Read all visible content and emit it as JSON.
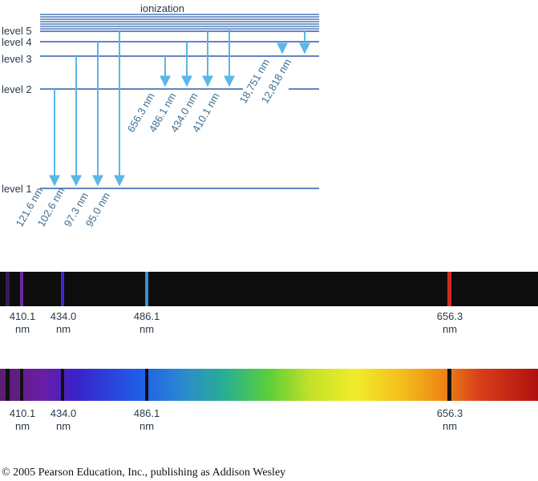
{
  "diagram": {
    "ionization_label": "ionization",
    "levels": [
      "level 1",
      "level 2",
      "level 3",
      "level 4",
      "level 5"
    ],
    "lyman_series": [
      "121.6 nm",
      "102.6 nm",
      "97.3 nm",
      "95.0 nm"
    ],
    "balmer_series": [
      "656.3 nm",
      "486.1 nm",
      "434.0 nm",
      "410.1 nm"
    ],
    "paschen_series": [
      "18,751 nm",
      "12,818 nm"
    ]
  },
  "spectra": {
    "lines": [
      {
        "value": "410.1",
        "unit": "nm"
      },
      {
        "value": "434.0",
        "unit": "nm"
      },
      {
        "value": "486.1",
        "unit": "nm"
      },
      {
        "value": "656.3",
        "unit": "nm"
      }
    ],
    "emission_colors": {
      "violet": "#5a1e8a",
      "blue": "#3a2ad0",
      "cyan": "#3a8fd0",
      "red": "#d22a1e"
    }
  },
  "colors": {
    "level_line": "#2c5fa8",
    "arrow": "#5ab7e6",
    "label": "#3b6e93"
  },
  "footer": {
    "copyright": "© 2005 Pearson Education, Inc., publishing as Addison Wesley"
  }
}
